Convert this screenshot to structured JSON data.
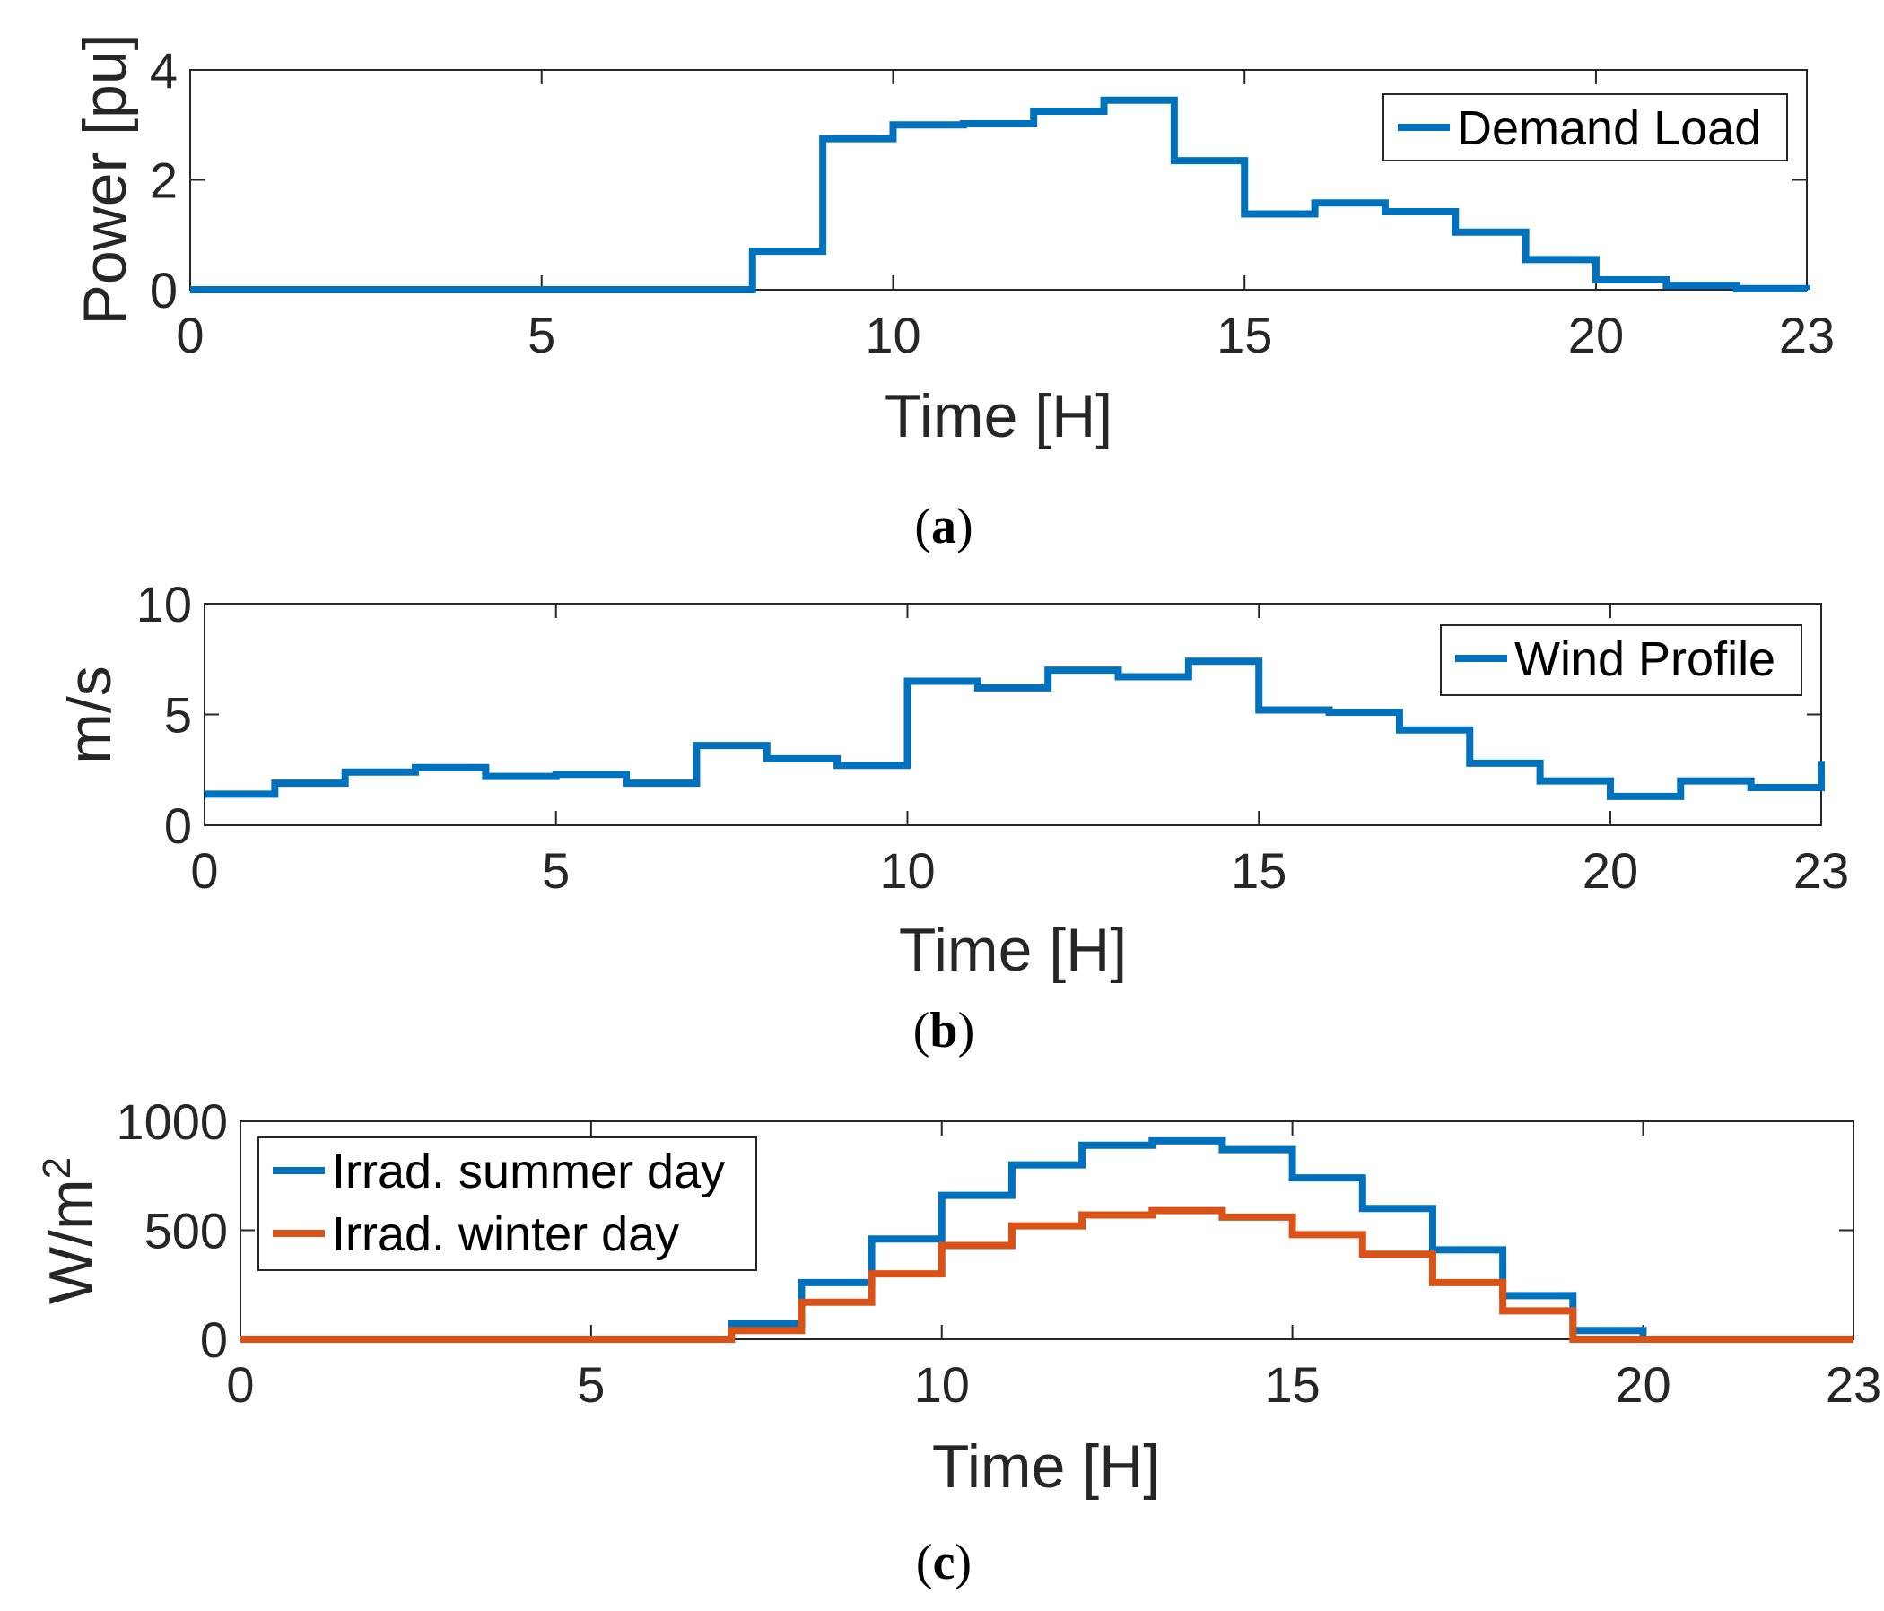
{
  "chart_data": [
    {
      "type": "line",
      "step": true,
      "xlabel": "Time [H]",
      "ylabel": "Power [pu]",
      "xlim": [
        0,
        23
      ],
      "ylim": [
        0,
        4
      ],
      "xticks": [
        0,
        5,
        10,
        15,
        20,
        23
      ],
      "yticks": [
        0,
        2,
        4
      ],
      "legend_position": "top-right",
      "caption": "a",
      "series": [
        {
          "name": "Demand Load",
          "color": "#0072BD",
          "x": [
            0,
            1,
            2,
            3,
            4,
            5,
            6,
            7,
            8,
            9,
            10,
            11,
            12,
            13,
            14,
            15,
            16,
            17,
            18,
            19,
            20,
            21,
            22,
            23
          ],
          "values": [
            0,
            0,
            0,
            0,
            0,
            0,
            0,
            0,
            0.7,
            2.75,
            3.0,
            3.02,
            3.25,
            3.45,
            2.35,
            1.38,
            1.58,
            1.42,
            1.05,
            0.55,
            0.18,
            0.08,
            0.02,
            0.0
          ]
        }
      ]
    },
    {
      "type": "line",
      "step": true,
      "xlabel": "Time [H]",
      "ylabel": "m/s",
      "xlim": [
        0,
        23
      ],
      "ylim": [
        0,
        10
      ],
      "xticks": [
        0,
        5,
        10,
        15,
        20,
        23
      ],
      "yticks": [
        0,
        5,
        10
      ],
      "legend_position": "top-right",
      "caption": "b",
      "series": [
        {
          "name": "Wind Profile",
          "color": "#0072BD",
          "x": [
            0,
            1,
            2,
            3,
            4,
            5,
            6,
            7,
            8,
            9,
            10,
            11,
            12,
            13,
            14,
            15,
            16,
            17,
            18,
            19,
            20,
            21,
            22,
            23
          ],
          "values": [
            1.4,
            1.9,
            2.4,
            2.6,
            2.2,
            2.3,
            1.9,
            3.6,
            3.0,
            2.7,
            6.5,
            6.2,
            7.0,
            6.7,
            7.4,
            5.2,
            5.1,
            4.3,
            2.8,
            2.0,
            1.3,
            2.0,
            1.7,
            2.9
          ]
        }
      ]
    },
    {
      "type": "line",
      "step": true,
      "xlabel": "Time [H]",
      "ylabel": "W/m",
      "ylabel_superscript": "2",
      "xlim": [
        0,
        23
      ],
      "ylim": [
        0,
        1000
      ],
      "xticks": [
        0,
        5,
        10,
        15,
        20,
        23
      ],
      "yticks": [
        0,
        500,
        1000
      ],
      "legend_position": "top-left",
      "caption": "c",
      "series": [
        {
          "name": "Irrad. summer day",
          "color": "#0072BD",
          "x": [
            0,
            1,
            2,
            3,
            4,
            5,
            6,
            7,
            8,
            9,
            10,
            11,
            12,
            13,
            14,
            15,
            16,
            17,
            18,
            19,
            20,
            21,
            22,
            23
          ],
          "values": [
            0,
            0,
            0,
            0,
            0,
            0,
            0,
            70,
            260,
            460,
            660,
            800,
            890,
            910,
            870,
            740,
            600,
            410,
            200,
            40,
            0,
            0,
            0,
            0
          ]
        },
        {
          "name": "Irrad. winter day",
          "color": "#D95319",
          "x": [
            0,
            1,
            2,
            3,
            4,
            5,
            6,
            7,
            8,
            9,
            10,
            11,
            12,
            13,
            14,
            15,
            16,
            17,
            18,
            19,
            20,
            21,
            22,
            23
          ],
          "values": [
            0,
            0,
            0,
            0,
            0,
            0,
            0,
            40,
            170,
            300,
            430,
            520,
            570,
            590,
            560,
            480,
            390,
            260,
            130,
            0,
            0,
            0,
            0,
            0
          ]
        }
      ]
    }
  ]
}
